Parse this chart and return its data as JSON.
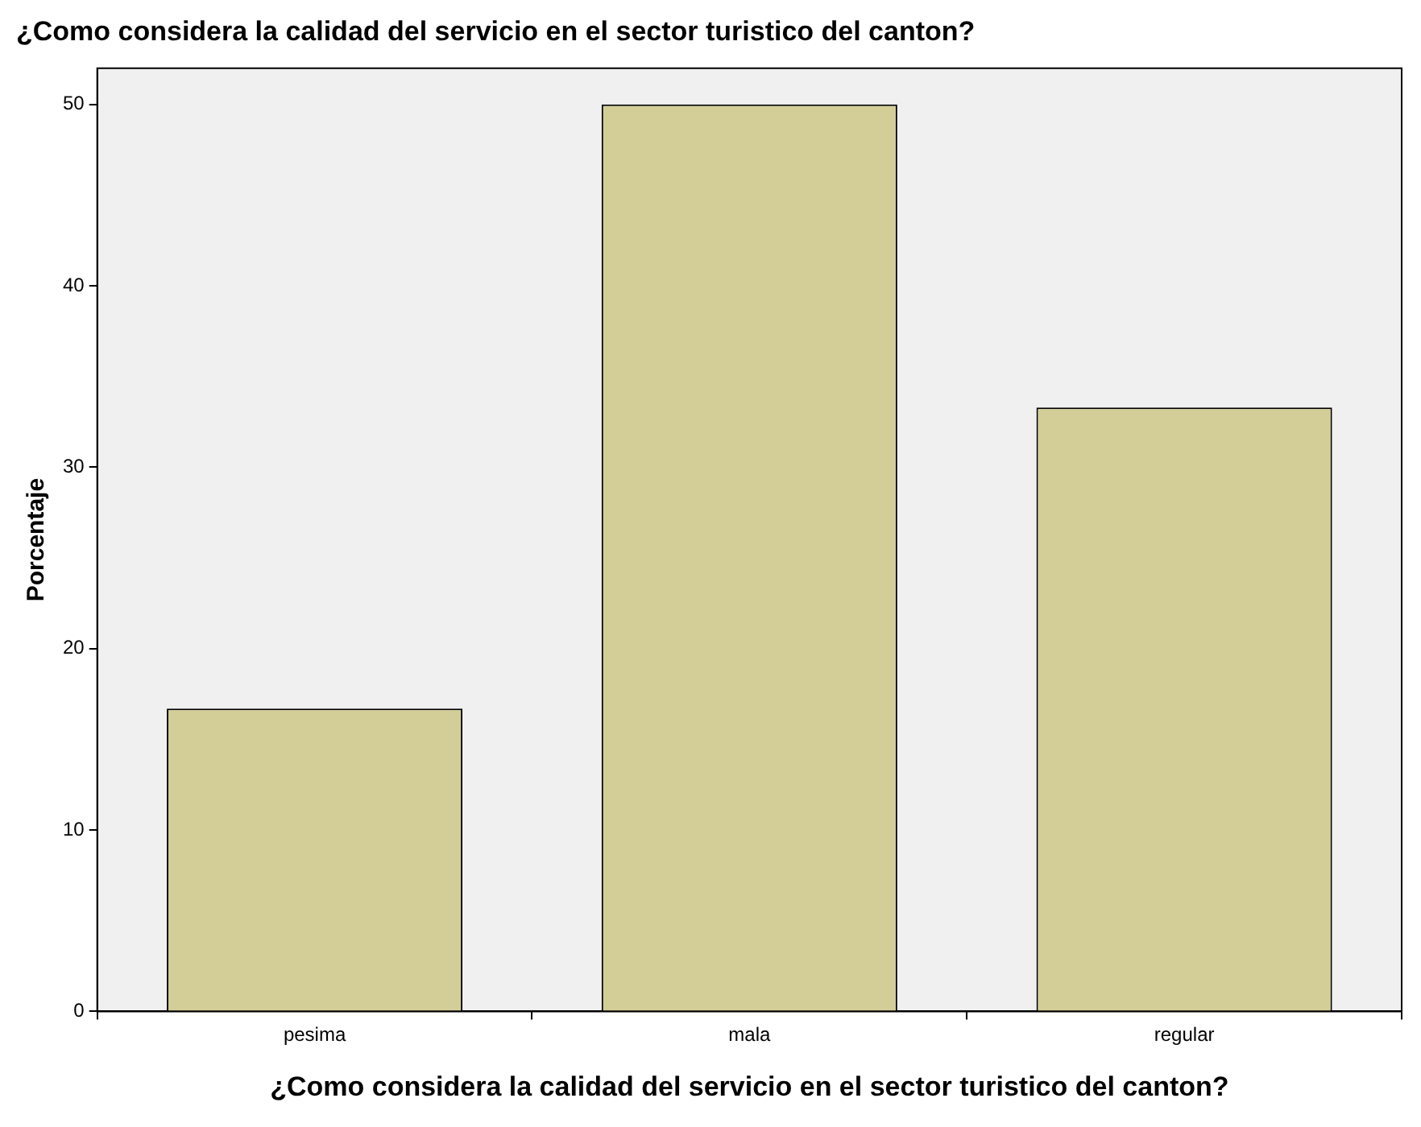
{
  "chart_data": {
    "type": "bar",
    "title": "¿Como considera la calidad del servicio en el sector turistico del canton?",
    "xlabel": "¿Como considera la calidad del servicio en el sector turistico del canton?",
    "ylabel": "Porcentaje",
    "categories": [
      "pesima",
      "mala",
      "regular"
    ],
    "values": [
      16.7,
      50,
      33.3
    ],
    "color": "#d3ce97",
    "ylim": [
      0,
      52
    ],
    "yticks": [
      0,
      10,
      20,
      30,
      40,
      50
    ],
    "grid": false,
    "legend": false
  }
}
